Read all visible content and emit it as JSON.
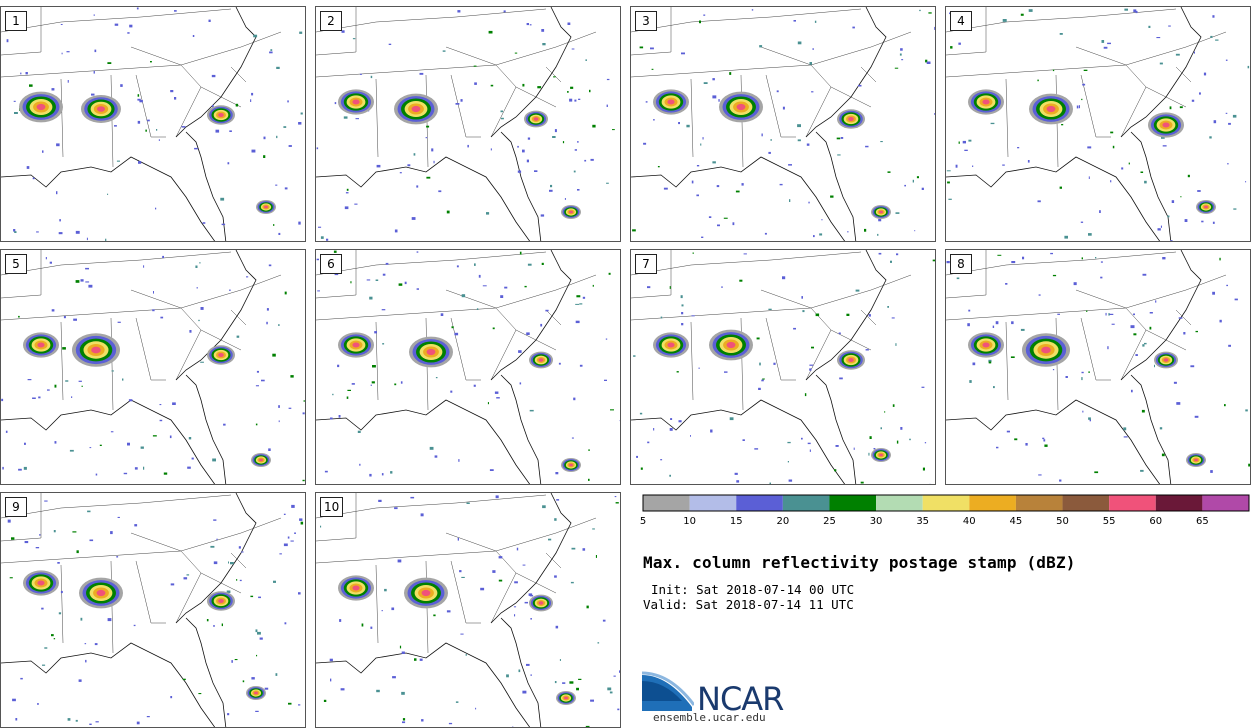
{
  "panels": [
    "1",
    "2",
    "3",
    "4",
    "5",
    "6",
    "7",
    "8",
    "9",
    "10"
  ],
  "colorbar": {
    "ticks": [
      "5",
      "10",
      "15",
      "20",
      "25",
      "30",
      "35",
      "40",
      "45",
      "50",
      "55",
      "60",
      "65"
    ],
    "colors": [
      "#a5a5a5",
      "#b3bde8",
      "#5b5fd6",
      "#4a9192",
      "#008000",
      "#b3dcb3",
      "#f0e065",
      "#ecad22",
      "#b8823a",
      "#8b5a3c",
      "#f0527a",
      "#6a1838",
      "#b049a8"
    ]
  },
  "title": "Max. column reflectivity postage stamp (dBZ)",
  "init": "Init: Sat 2018-07-14 00 UTC",
  "valid": "Valid: Sat 2018-07-14 11 UTC",
  "logo": {
    "name": "NCAR",
    "site": "ensemble.ucar.edu"
  }
}
